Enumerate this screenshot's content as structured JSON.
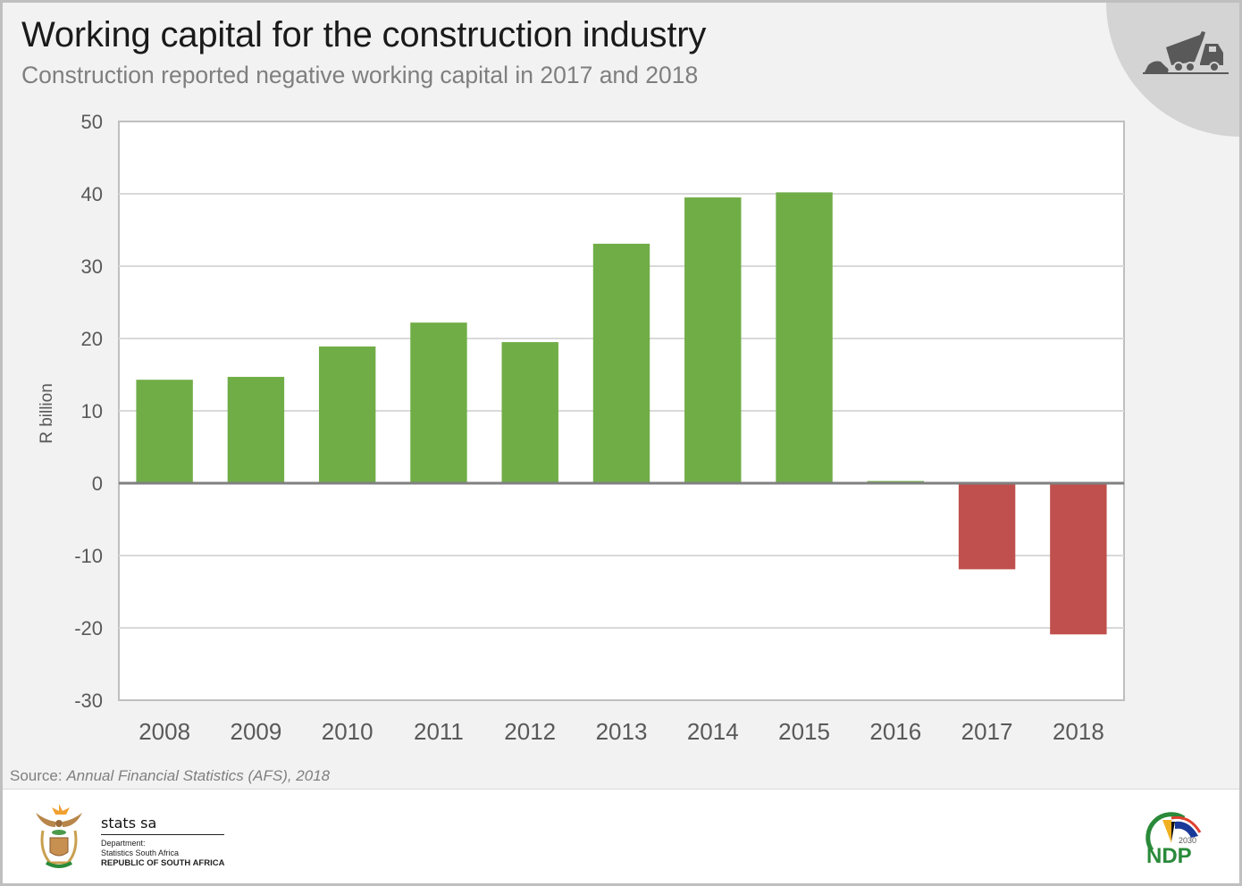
{
  "header": {
    "title": "Working capital for the construction industry",
    "subtitle": "Construction reported negative working capital in 2017 and 2018",
    "icon": "dump-truck-icon"
  },
  "source": {
    "label": "Source:",
    "text": "Annual Financial Statistics (AFS), 2018"
  },
  "footer": {
    "org_name": "stats sa",
    "dept_line1": "Department:",
    "dept_line2": "Statistics South Africa",
    "dept_line3": "REPUBLIC OF SOUTH AFRICA",
    "ndp_year": "2030",
    "ndp_label": "NDP"
  },
  "colors": {
    "positive": "#70ad47",
    "negative": "#c0504d",
    "gridline": "#d9d9d9",
    "zero_line": "#808080",
    "axis_text": "#595959"
  },
  "chart_data": {
    "type": "bar",
    "title": "Working capital for the construction industry",
    "subtitle": "Construction reported negative working capital in 2017 and 2018",
    "xlabel": "",
    "ylabel": "R billion",
    "categories": [
      "2008",
      "2009",
      "2010",
      "2011",
      "2012",
      "2013",
      "2014",
      "2015",
      "2016",
      "2017",
      "2018"
    ],
    "values": [
      14.3,
      14.7,
      18.9,
      22.2,
      19.5,
      33.1,
      39.5,
      40.2,
      0.3,
      -11.9,
      -20.9
    ],
    "ylim": [
      -30,
      50
    ],
    "yticks": [
      50,
      40,
      30,
      20,
      10,
      0,
      -10,
      -20,
      -30
    ],
    "grid": true,
    "legend": "none"
  }
}
